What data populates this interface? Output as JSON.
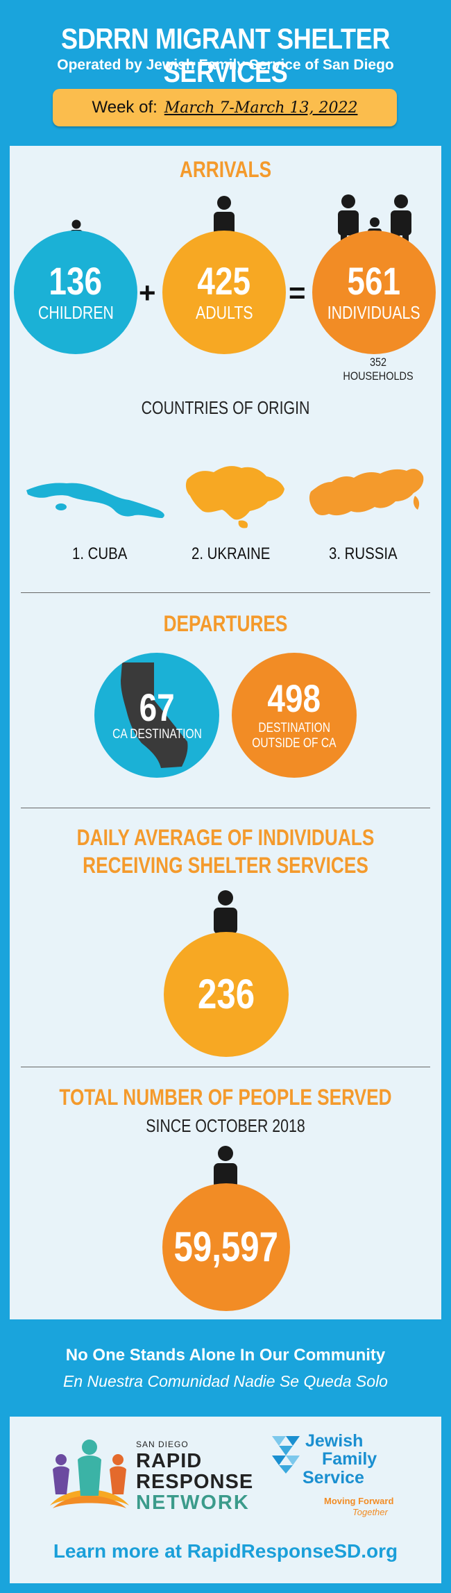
{
  "header": {
    "title": "SDRRN MIGRANT SHELTER SERVICES",
    "subtitle": "Operated by Jewish Family Service of San Diego",
    "week_label": "Week of:",
    "week_dates": "March 7-March 13, 2022"
  },
  "arrivals": {
    "title": "ARRIVALS",
    "children": {
      "value": "136",
      "label": "CHILDREN"
    },
    "adults": {
      "value": "425",
      "label": "ADULTS"
    },
    "individuals": {
      "value": "561",
      "label": "INDIVIDUALS"
    },
    "plus": "+",
    "equals": "=",
    "households": "352 HOUSEHOLDS"
  },
  "origin": {
    "title": "COUNTRIES OF ORIGIN",
    "countries": [
      "1. CUBA",
      "2. UKRAINE",
      "3. RUSSIA"
    ]
  },
  "departures": {
    "title": "DEPARTURES",
    "ca": {
      "value": "67",
      "label": "CA DESTINATION"
    },
    "outside": {
      "value": "498",
      "label_line1": "DESTINATION",
      "label_line2": "OUTSIDE OF CA"
    }
  },
  "daily": {
    "title_line1": "DAILY AVERAGE OF INDIVIDUALS",
    "title_line2": "RECEIVING SHELTER SERVICES",
    "value": "236"
  },
  "total": {
    "title": "TOTAL NUMBER OF PEOPLE SERVED",
    "subtitle": "SINCE OCTOBER 2018",
    "value": "59,597"
  },
  "tagline": {
    "english": "No One Stands Alone In Our Community",
    "spanish": "En Nuestra Comunidad Nadie Se Queda Solo"
  },
  "footer": {
    "rrn_small": "SAN DIEGO",
    "rrn_line1": "RAPID",
    "rrn_line2": "RESPONSE",
    "rrn_line3": "NETWORK",
    "jfs_line1": "Jewish",
    "jfs_line2": "Family",
    "jfs_line3": "Service",
    "jfs_tag1": "Moving Forward",
    "jfs_tag2": "Together",
    "learn_more": "Learn more at RapidResponseSD.org"
  },
  "colors": {
    "background_blue": "#1aa4dc",
    "panel": "#e8f3f9",
    "orange": "#f28c25",
    "yellow": "#f7a823",
    "teal": "#1bb1d6",
    "week_box": "#fbbd4d"
  }
}
